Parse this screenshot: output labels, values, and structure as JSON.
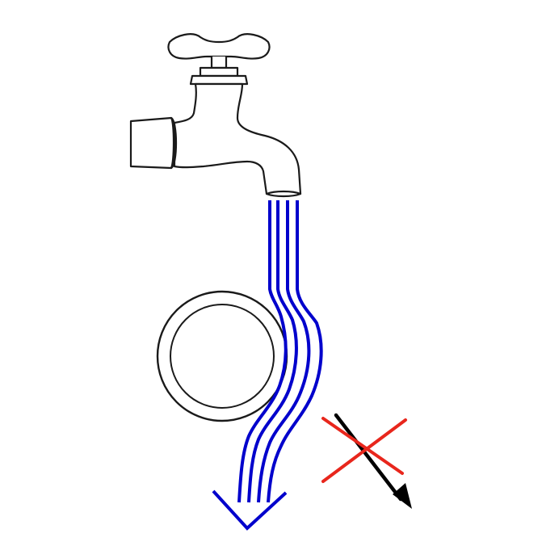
{
  "diagram": {
    "subject": "",
    "colors": {
      "water": "#0000cc",
      "outline": "#1a1a1a",
      "cross": "#e8261c",
      "wrong_arrow": "#000000",
      "background": "#ffffff"
    },
    "elements": [
      {
        "name": "faucet",
        "icon": "faucet-icon"
      },
      {
        "name": "water-stream",
        "icon": "water-stream-icon",
        "lines": 4
      },
      {
        "name": "cylinder",
        "icon": "circle-object-icon"
      },
      {
        "name": "flow-arrow",
        "icon": "arrow-down-icon"
      },
      {
        "name": "incorrect-path",
        "icon": "crossed-arrow-icon"
      }
    ]
  }
}
